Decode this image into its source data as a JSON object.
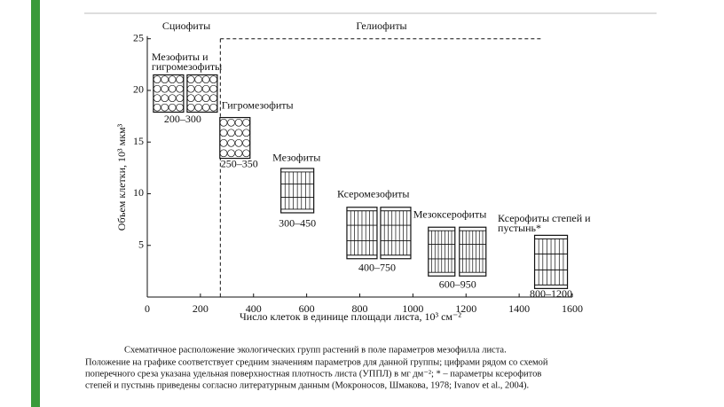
{
  "chart_data": {
    "type": "scatter",
    "zones": [
      "Сциофиты",
      "Гелиофиты"
    ],
    "divider_x": 275,
    "x_label": "Число клеток в единице площади листа, 10³ см⁻²",
    "y_label": "Объем клетки, 10³ мкм³",
    "xlim": [
      0,
      1600
    ],
    "xticks": [
      0,
      200,
      400,
      600,
      800,
      1000,
      1200,
      1400,
      1600
    ],
    "ylim": [
      0,
      25
    ],
    "yticks": [
      5,
      10,
      15,
      20,
      25
    ],
    "groups": [
      {
        "name": [
          "Мезофиты и",
          "гигромезофиты"
        ],
        "x": 150,
        "y": 19.7,
        "range": "200–300"
      },
      {
        "name": [
          "Гигромезофиты"
        ],
        "x": 330,
        "y": 15.4,
        "range": "250–350"
      },
      {
        "name": [
          "Мезофиты"
        ],
        "x": 565,
        "y": 10.3,
        "range": "300–450"
      },
      {
        "name": [
          "Ксеромезофиты"
        ],
        "x": 865,
        "y": 6.2,
        "range": "400–750"
      },
      {
        "name": [
          "Мезоксерофиты"
        ],
        "x": 1175,
        "y": 4.4,
        "range": "600–950"
      },
      {
        "name": [
          "Ксерофиты степей и",
          "пустынь*"
        ],
        "x": 1520,
        "y": 3.4,
        "range": "800–1200"
      }
    ]
  },
  "caption": {
    "lines": [
      "Схематичное расположение экологических групп растений в поле параметров мезофилла листа.",
      "Положение на графике соответствует средним значениям параметров для данной группы; цифрами рядом со схемой",
      "поперечного среза указана удельная поверхностная плотность листа (УППЛ) в мг дм⁻²; * – параметры ксерофитов",
      "степей и пустынь приведены согласно литературным данным (Мокроносов, Шмакова, 1978; Ivanov et al., 2004)."
    ]
  }
}
